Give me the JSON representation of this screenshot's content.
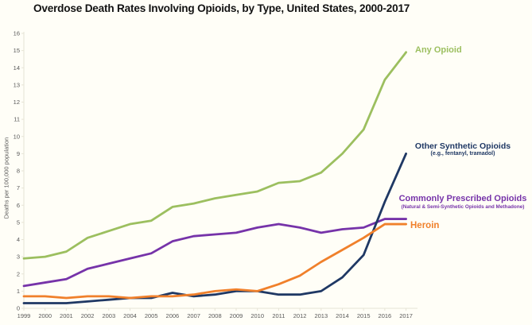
{
  "title": "Overdose Death Rates Involving Opioids, by Type, United States, 2000-2017",
  "y_axis_title": "Deaths per 100,000 population",
  "colors": {
    "any_opioid": "#9cbf5f",
    "other_synthetic": "#1f3864",
    "commonly_prescribed": "#7633a9",
    "heroin": "#f0802b",
    "axis": "#e6e4d6",
    "tick_text": "#595959",
    "background": "#fffef7"
  },
  "legend": {
    "any_opioid": {
      "label": "Any Opioid"
    },
    "other_synthetic": {
      "label": "Other Synthetic Opioids",
      "sublabel": "(e.g., fentanyl, tramadol)"
    },
    "commonly_prescribed": {
      "label": "Commonly Prescribed Opioids",
      "sublabel": "(Natural & Semi-Synthetic Opioids and Methadone)"
    },
    "heroin": {
      "label": "Heroin"
    }
  },
  "chart_data": {
    "type": "line",
    "title": "Overdose Death Rates Involving Opioids, by Type, United States, 2000-2017",
    "xlabel": "",
    "ylabel": "Deaths per 100,000 population",
    "x": [
      1999,
      2000,
      2001,
      2002,
      2003,
      2004,
      2005,
      2006,
      2007,
      2008,
      2009,
      2010,
      2011,
      2012,
      2013,
      2014,
      2015,
      2016,
      2017
    ],
    "ylim": [
      0,
      16
    ],
    "y_tick_step": 1,
    "y_ticks": [
      0,
      1,
      2,
      3,
      4,
      5,
      6,
      7,
      8,
      9,
      10,
      11,
      12,
      13,
      14,
      15,
      16
    ],
    "grid": false,
    "legend_position": "end-of-line-labels",
    "series": [
      {
        "name": "Any Opioid",
        "color": "#9cbf5f",
        "values": [
          2.9,
          3.0,
          3.3,
          4.1,
          4.5,
          4.9,
          5.1,
          5.9,
          6.1,
          6.4,
          6.6,
          6.8,
          7.3,
          7.4,
          7.9,
          9.0,
          10.4,
          13.3,
          14.9
        ]
      },
      {
        "name": "Commonly Prescribed Opioids (Natural & Semi-Synthetic Opioids and Methadone)",
        "color": "#7633a9",
        "values": [
          1.3,
          1.5,
          1.7,
          2.3,
          2.6,
          2.9,
          3.2,
          3.9,
          4.2,
          4.3,
          4.4,
          4.7,
          4.9,
          4.7,
          4.4,
          4.6,
          4.7,
          5.2,
          5.2
        ]
      },
      {
        "name": "Other Synthetic Opioids (e.g., fentanyl, tramadol)",
        "color": "#1f3864",
        "values": [
          0.3,
          0.3,
          0.3,
          0.4,
          0.5,
          0.6,
          0.6,
          0.9,
          0.7,
          0.8,
          1.0,
          1.0,
          0.8,
          0.8,
          1.0,
          1.8,
          3.1,
          6.2,
          9.0
        ]
      },
      {
        "name": "Heroin",
        "color": "#f0802b",
        "values": [
          0.7,
          0.7,
          0.6,
          0.7,
          0.7,
          0.6,
          0.7,
          0.7,
          0.8,
          1.0,
          1.1,
          1.0,
          1.4,
          1.9,
          2.7,
          3.4,
          4.1,
          4.9,
          4.9
        ]
      }
    ]
  }
}
